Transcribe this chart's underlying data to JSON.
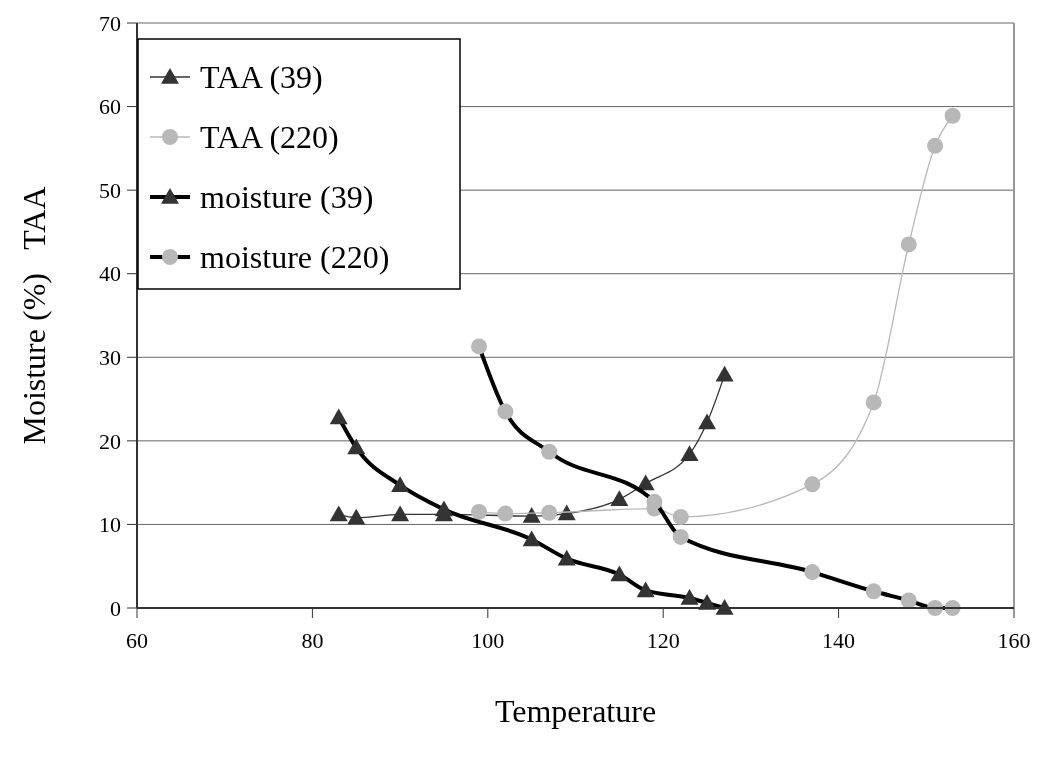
{
  "chart_data": {
    "type": "line",
    "xlabel": "Temperature",
    "ylabel": "Moisture (%)   TAA",
    "xlim": [
      60,
      160
    ],
    "xticks": [
      60,
      80,
      100,
      120,
      140,
      160
    ],
    "ylim": [
      0,
      70
    ],
    "yticks": [
      0,
      10,
      20,
      30,
      40,
      50,
      60,
      70
    ],
    "grid": "y",
    "legend": "top left",
    "series": [
      {
        "name": "TAA (39)",
        "color": "#333333",
        "marker": "triangle",
        "x": [
          83,
          85,
          90,
          95,
          105,
          109,
          115,
          118,
          123,
          125,
          127
        ],
        "values": [
          11.2,
          10.8,
          11.2,
          11.2,
          11.0,
          11.3,
          13.0,
          14.9,
          18.4,
          22.2,
          27.9
        ]
      },
      {
        "name": "TAA (220)",
        "color": "#b8b8b8",
        "marker": "circle",
        "x": [
          99,
          102,
          107,
          119,
          122,
          137,
          144,
          148,
          151,
          153
        ],
        "values": [
          11.5,
          11.3,
          11.4,
          11.9,
          10.9,
          14.8,
          24.6,
          43.5,
          55.3,
          58.9
        ]
      },
      {
        "name": "moisture (39)",
        "color": "#000000",
        "colors": [
          "#333333",
          "#333333",
          "#333333",
          "#333333",
          "#333333",
          "#333333",
          "#333333",
          "#333333",
          "#333333",
          "#333333",
          "#333333"
        ],
        "marker": "triangle",
        "x": [
          83,
          85,
          90,
          95,
          105,
          109,
          115,
          118,
          123,
          125,
          127
        ],
        "values": [
          22.8,
          19.2,
          14.7,
          11.8,
          8.2,
          5.9,
          4.0,
          2.1,
          1.2,
          0.6,
          0
        ]
      },
      {
        "name": "moisture (220)",
        "color": "#000000",
        "colors": [
          "#b8b8b8",
          "#b8b8b8",
          "#b8b8b8",
          "#b8b8b8",
          "#b8b8b8",
          "#b8b8b8",
          "#b8b8b8",
          "#b8b8b8",
          "#b8b8b8",
          "#b8b8b8"
        ],
        "marker": "circle",
        "x": [
          99,
          102,
          107,
          119,
          122,
          137,
          144,
          148,
          151,
          153
        ],
        "values": [
          31.3,
          23.5,
          18.7,
          12.7,
          8.5,
          4.3,
          2.0,
          0.9,
          0,
          0
        ]
      }
    ]
  }
}
